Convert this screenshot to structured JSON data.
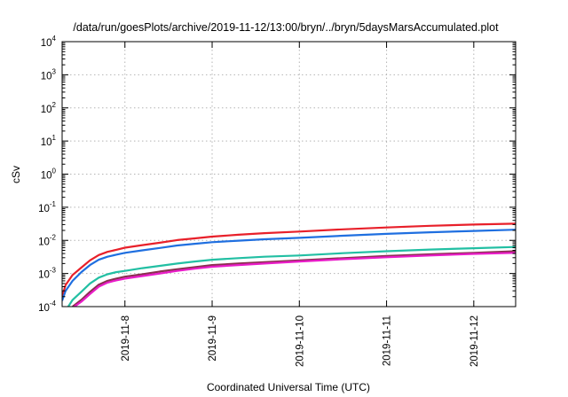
{
  "chart_data": {
    "type": "line",
    "title": "/data/run/goesPlots/archive/2019-11-12/13:00/bryn/../bryn/5daysMarsAccumulated.plot",
    "xlabel": "Coordinated Universal Time (UTC)",
    "ylabel": "cSv",
    "yscale": "log",
    "ylim": [
      0.0001,
      10000
    ],
    "xlim": [
      -0.72,
      4.48
    ],
    "x_unit": "days after 2019-11-08 00:00 UTC",
    "x_ticks": [
      {
        "value": 0,
        "label": "2019-11-8"
      },
      {
        "value": 1,
        "label": "2019-11-9"
      },
      {
        "value": 2,
        "label": "2019-11-10"
      },
      {
        "value": 3,
        "label": "2019-11-11"
      },
      {
        "value": 4,
        "label": "2019-11-12"
      }
    ],
    "y_ticks": [
      {
        "value": 0.0001,
        "base": "10",
        "exp": "-4"
      },
      {
        "value": 0.001,
        "base": "10",
        "exp": "-3"
      },
      {
        "value": 0.01,
        "base": "10",
        "exp": "-2"
      },
      {
        "value": 0.1,
        "base": "10",
        "exp": "-1"
      },
      {
        "value": 1,
        "base": "10",
        "exp": "0"
      },
      {
        "value": 10,
        "base": "10",
        "exp": "1"
      },
      {
        "value": 100,
        "base": "10",
        "exp": "2"
      },
      {
        "value": 1000,
        "base": "10",
        "exp": "3"
      },
      {
        "value": 10000,
        "base": "10",
        "exp": "4"
      }
    ],
    "grid": true,
    "legend": "none",
    "series": [
      {
        "color": "#e8202a",
        "points": [
          [
            -0.72,
            0.0002
          ],
          [
            -0.68,
            0.00045
          ],
          [
            -0.6,
            0.0009
          ],
          [
            -0.5,
            0.0015
          ],
          [
            -0.4,
            0.0025
          ],
          [
            -0.3,
            0.0036
          ],
          [
            -0.2,
            0.0045
          ],
          [
            -0.1,
            0.0052
          ],
          [
            0,
            0.006
          ],
          [
            0.2,
            0.0072
          ],
          [
            0.4,
            0.0085
          ],
          [
            0.6,
            0.0102
          ],
          [
            0.8,
            0.0115
          ],
          [
            1.0,
            0.013
          ],
          [
            1.3,
            0.0148
          ],
          [
            1.6,
            0.0165
          ],
          [
            2.0,
            0.0185
          ],
          [
            2.5,
            0.0215
          ],
          [
            3.0,
            0.0245
          ],
          [
            3.5,
            0.0275
          ],
          [
            4.0,
            0.03
          ],
          [
            4.48,
            0.032
          ]
        ]
      },
      {
        "color": "#1f6fe0",
        "points": [
          [
            -0.72,
            0.00015
          ],
          [
            -0.68,
            0.0003
          ],
          [
            -0.6,
            0.0006
          ],
          [
            -0.5,
            0.0011
          ],
          [
            -0.4,
            0.0018
          ],
          [
            -0.3,
            0.0026
          ],
          [
            -0.2,
            0.0032
          ],
          [
            -0.1,
            0.0037
          ],
          [
            0,
            0.0042
          ],
          [
            0.2,
            0.005
          ],
          [
            0.4,
            0.0059
          ],
          [
            0.6,
            0.007
          ],
          [
            0.8,
            0.0079
          ],
          [
            1.0,
            0.0088
          ],
          [
            1.3,
            0.0098
          ],
          [
            1.6,
            0.0108
          ],
          [
            2.0,
            0.0119
          ],
          [
            2.5,
            0.0138
          ],
          [
            3.0,
            0.0157
          ],
          [
            3.5,
            0.0176
          ],
          [
            4.0,
            0.0193
          ],
          [
            4.48,
            0.021
          ]
        ]
      },
      {
        "color": "#22bfa3",
        "points": [
          [
            -0.65,
            0.0001
          ],
          [
            -0.6,
            0.00016
          ],
          [
            -0.5,
            0.00028
          ],
          [
            -0.4,
            0.0005
          ],
          [
            -0.3,
            0.00075
          ],
          [
            -0.2,
            0.00095
          ],
          [
            -0.1,
            0.0011
          ],
          [
            0,
            0.0012
          ],
          [
            0.2,
            0.00145
          ],
          [
            0.4,
            0.0017
          ],
          [
            0.6,
            0.002
          ],
          [
            0.8,
            0.0023
          ],
          [
            1.0,
            0.0026
          ],
          [
            1.3,
            0.0029
          ],
          [
            1.6,
            0.0032
          ],
          [
            2.0,
            0.0035
          ],
          [
            2.5,
            0.0041
          ],
          [
            3.0,
            0.0047
          ],
          [
            3.5,
            0.0053
          ],
          [
            4.0,
            0.0058
          ],
          [
            4.48,
            0.0063
          ]
        ]
      },
      {
        "color": "#8a2f4e",
        "points": [
          [
            -0.6,
            0.0001
          ],
          [
            -0.5,
            0.00016
          ],
          [
            -0.4,
            0.00028
          ],
          [
            -0.3,
            0.00046
          ],
          [
            -0.2,
            0.0006
          ],
          [
            -0.1,
            0.0007
          ],
          [
            0,
            0.0008
          ],
          [
            0.2,
            0.00095
          ],
          [
            0.4,
            0.00115
          ],
          [
            0.6,
            0.00135
          ],
          [
            0.8,
            0.00155
          ],
          [
            1.0,
            0.0018
          ],
          [
            1.3,
            0.002
          ],
          [
            1.6,
            0.0022
          ],
          [
            2.0,
            0.0025
          ],
          [
            2.5,
            0.0029
          ],
          [
            3.0,
            0.0034
          ],
          [
            3.5,
            0.0038
          ],
          [
            4.0,
            0.0042
          ],
          [
            4.48,
            0.0047
          ]
        ]
      },
      {
        "color": "#e91cc8",
        "points": [
          [
            -0.58,
            0.0001
          ],
          [
            -0.5,
            0.00014
          ],
          [
            -0.4,
            0.00024
          ],
          [
            -0.3,
            0.0004
          ],
          [
            -0.2,
            0.00053
          ],
          [
            -0.1,
            0.00062
          ],
          [
            0,
            0.0007
          ],
          [
            0.2,
            0.00084
          ],
          [
            0.4,
            0.001
          ],
          [
            0.6,
            0.0012
          ],
          [
            0.8,
            0.0014
          ],
          [
            1.0,
            0.0016
          ],
          [
            1.3,
            0.0018
          ],
          [
            1.6,
            0.002
          ],
          [
            2.0,
            0.0023
          ],
          [
            2.5,
            0.0027
          ],
          [
            3.0,
            0.0031
          ],
          [
            3.5,
            0.0035
          ],
          [
            4.0,
            0.0039
          ],
          [
            4.48,
            0.0042
          ]
        ]
      }
    ]
  }
}
